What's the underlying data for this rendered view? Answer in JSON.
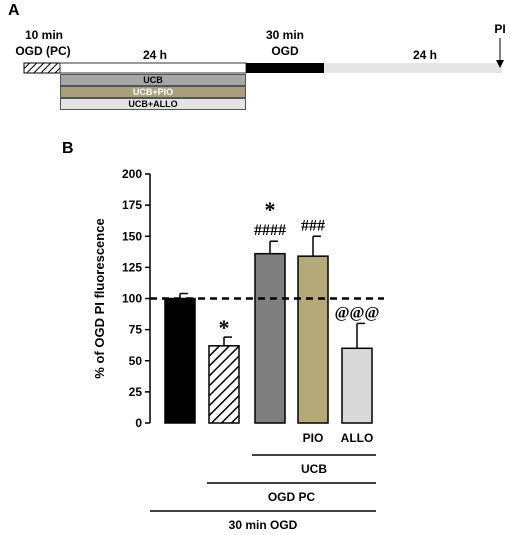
{
  "panel_a": {
    "letter": "A",
    "pc_title_line1": "10 min",
    "pc_title_line2": "OGD (PC)",
    "interval1": "24 h",
    "ogd_title_line1": "30 min",
    "ogd_title_line2": "OGD",
    "interval2": "24 h",
    "pi_label": "PI",
    "treatments": [
      {
        "label": "UCB",
        "color": "#a6a6a6",
        "text_color": "#000000"
      },
      {
        "label": "UCB+PIO",
        "color": "#a8a07a",
        "text_color": "#ffffff"
      },
      {
        "label": "UCB+ALLO",
        "color": "#e4e4e4",
        "text_color": "#000000"
      }
    ]
  },
  "panel_b": {
    "letter": "B",
    "group_labels": {
      "ucb": "UCB",
      "ogd_pc": "OGD PC",
      "ogd30": "30 min OGD"
    },
    "baseline": 100
  },
  "chart_data": {
    "type": "bar",
    "title": "",
    "ylabel": "% of OGD PI fluorescence",
    "ylim": [
      0,
      200
    ],
    "yticks": [
      0,
      25,
      50,
      75,
      100,
      125,
      150,
      175,
      200
    ],
    "categories": [
      "",
      "",
      "",
      "PIO",
      "ALLO"
    ],
    "values": [
      100,
      62,
      136,
      134,
      60
    ],
    "errors": [
      4,
      7,
      10,
      16,
      20
    ],
    "colors": [
      "#000000",
      "hatch",
      "#7f7f7f",
      "#b5a97a",
      "#d9d9d9"
    ],
    "annotations": [
      {
        "bar": 1,
        "lines": [
          "*"
        ]
      },
      {
        "bar": 2,
        "lines": [
          "*",
          "####"
        ]
      },
      {
        "bar": 3,
        "lines": [
          "###"
        ]
      },
      {
        "bar": 4,
        "lines": [
          "@@@"
        ]
      }
    ]
  }
}
